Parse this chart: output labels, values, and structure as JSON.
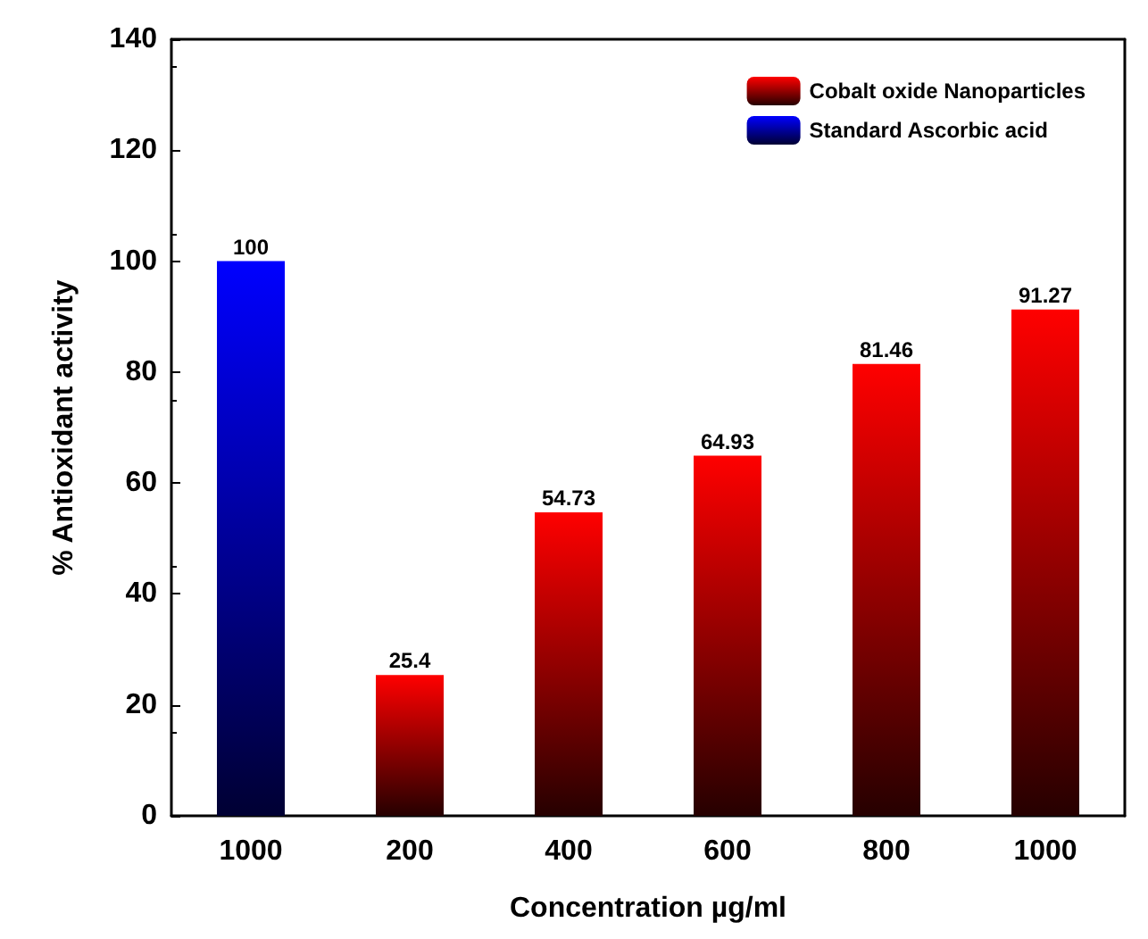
{
  "chart_data": {
    "type": "bar",
    "xlabel": "Concentration µg/ml",
    "ylabel": "% Antioxidant activity",
    "categories": [
      "1000",
      "200",
      "400",
      "600",
      "800",
      "1000"
    ],
    "series": [
      {
        "name": "Cobalt oxide Nanoparticles",
        "color": "#ff0000",
        "values": [
          null,
          25.4,
          54.73,
          64.93,
          81.46,
          91.27
        ]
      },
      {
        "name": "Standard Ascorbic acid",
        "color": "#0000ff",
        "values": [
          100,
          null,
          null,
          null,
          null,
          null
        ]
      }
    ],
    "ylim": [
      0,
      140
    ],
    "yticks": [
      0,
      20,
      40,
      60,
      80,
      100,
      120,
      140
    ],
    "grid": false,
    "legend": "top right",
    "data_labels": true
  }
}
